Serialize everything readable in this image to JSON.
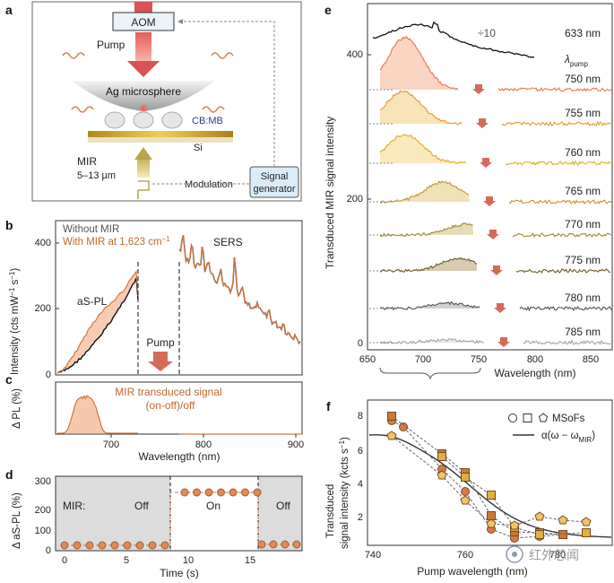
{
  "panel_labels": {
    "a": "a",
    "b": "b",
    "c": "c",
    "d": "d",
    "e": "e",
    "f": "f"
  },
  "panel_a": {
    "aom": "AOM",
    "pump": "Pump",
    "sphere": "Ag microsphere",
    "molecule": "CB:MB",
    "substrate": "Si",
    "mir": "MIR",
    "mir_range": "5–13 µm",
    "modulation": "Modulation",
    "signal_gen_1": "Signal",
    "signal_gen_2": "generator"
  },
  "panel_b": {
    "legend_without": "Without MIR",
    "legend_with": "With MIR at 1,623 cm",
    "legend_with_sup": "−1",
    "ylabel": "Intensity (cts mW",
    "ylabel_sup1": "−1",
    "ylabel_s": " s",
    "ylabel_sup2": "−1",
    "ylabel_end": ")",
    "label_aspl": "aS-PL",
    "label_sers": "SERS",
    "label_pump": "Pump",
    "yticks": [
      "0",
      "200",
      "400"
    ],
    "colors": {
      "without": "#111111",
      "with": "#d4763b",
      "fill": "#f2b592"
    }
  },
  "panel_c": {
    "ylabel": "Δ PL (%)",
    "signal_1": "MIR transduced signal",
    "signal_2": "(on-off)/off",
    "xlabel": "Wavelength (nm)",
    "xticks": [
      "700",
      "800",
      "900"
    ]
  },
  "panel_d": {
    "ylabel": "Δ aS-PL (%)",
    "mir": "MIR:",
    "off1": "Off",
    "on": "On",
    "off2": "Off",
    "xlabel": "Time (s)",
    "xticks": [
      "0",
      "5",
      "10",
      "15"
    ],
    "yticks": [
      "0",
      "100",
      "200",
      "300"
    ]
  },
  "panel_e": {
    "ref_label": "633 nm",
    "div_label": "÷10",
    "lambda": "λ",
    "lambda_sub": "pump",
    "pumps": [
      "750 nm",
      "755 nm",
      "760 nm",
      "765 nm",
      "770 nm",
      "775 nm",
      "780 nm",
      "785 nm"
    ],
    "ylabel": "Transduced MIR signal intensity",
    "yticks": [
      "0",
      "200",
      "400"
    ],
    "xlabel": "Wavelength (nm)",
    "xticks": [
      "650",
      "700",
      "750",
      "800",
      "850"
    ]
  },
  "panel_f": {
    "ylabel_1": "Transduced",
    "ylabel_2": "signal intensity (kcts s",
    "ylabel_sup": "−1",
    "ylabel_end": ")",
    "xlabel": "Pump wavelength (nm)",
    "legend_msofs": "MSoFs",
    "legend_alpha": "α(ω − ω",
    "legend_alpha_sub": "MIR",
    "legend_alpha_end": ")",
    "xticks": [
      "740",
      "760",
      "780"
    ],
    "yticks": [
      "2",
      "4",
      "6",
      "8"
    ],
    "watermark": "红外芯闻"
  }
}
